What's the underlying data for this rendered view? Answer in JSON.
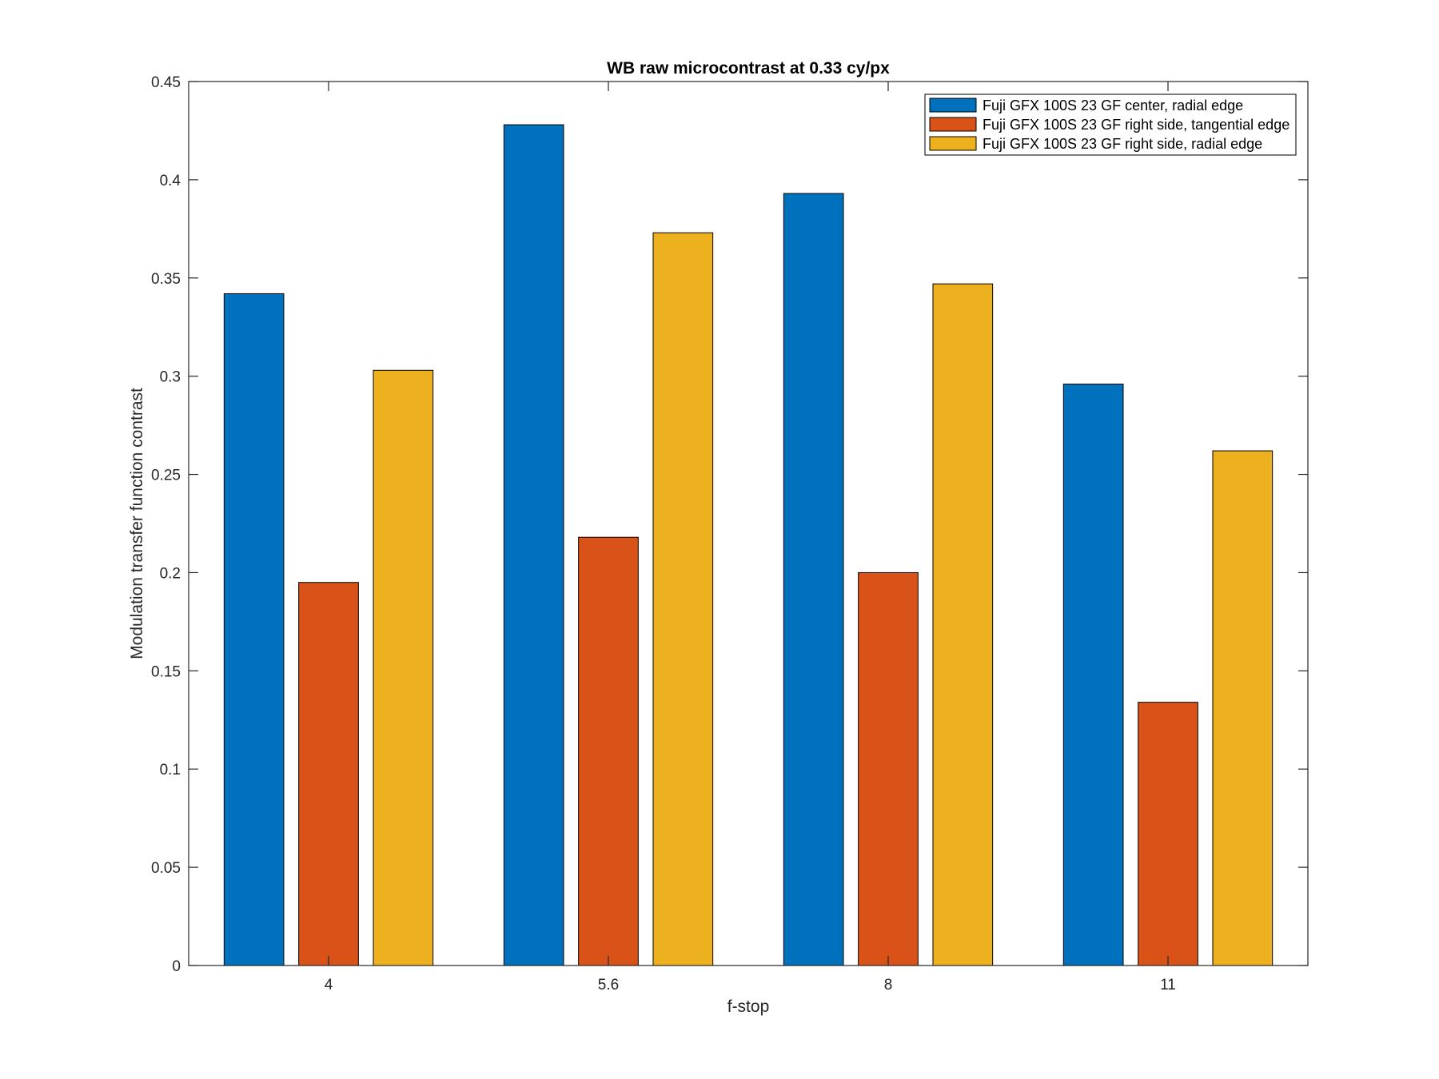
{
  "chart_data": {
    "type": "bar",
    "title": "WB raw  microcontrast at 0.33 cy/px",
    "xlabel": "f-stop",
    "ylabel": "Modulation transfer function contrast",
    "categories": [
      "4",
      "5.6",
      "8",
      "11"
    ],
    "ylim": [
      0,
      0.45
    ],
    "yticks": [
      "0",
      "0.05",
      "0.1",
      "0.15",
      "0.2",
      "0.25",
      "0.3",
      "0.35",
      "0.4",
      "0.45"
    ],
    "grid": false,
    "legend_position": "top-right",
    "series": [
      {
        "name": "Fuji GFX 100S 23 GF center, radial edge",
        "color": "#0072BD",
        "values": [
          0.342,
          0.428,
          0.393,
          0.296
        ]
      },
      {
        "name": "Fuji GFX 100S 23 GF right side, tangential edge",
        "color": "#D95319",
        "values": [
          0.195,
          0.218,
          0.2,
          0.134
        ]
      },
      {
        "name": "Fuji GFX 100S 23 GF right side, radial edge",
        "color": "#EDB120",
        "values": [
          0.303,
          0.373,
          0.347,
          0.262
        ]
      }
    ]
  }
}
